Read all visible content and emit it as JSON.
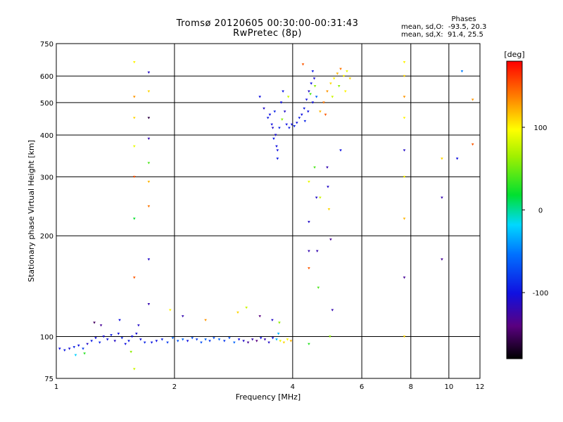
{
  "chart_data": {
    "type": "scatter",
    "title": "Tromsø 20120605 00:30:00-00:31:43",
    "subtitle": "RwPretec (8p)",
    "xlabel": "Frequency [MHz]",
    "ylabel": "Stationary phase Virtual Height [km]",
    "xscale": "log",
    "yscale": "log",
    "xlim": [
      1,
      12
    ],
    "ylim": [
      75,
      750
    ],
    "xticks": [
      1,
      2,
      4,
      6,
      8,
      10,
      12
    ],
    "yticks": [
      75,
      100,
      200,
      300,
      400,
      500,
      600,
      750
    ],
    "grid": true,
    "phase_stats": {
      "title": "Phases",
      "line_o": "mean, sd,O:  -93.5, 20.3",
      "line_x": "mean, sd,X:  91.4, 25.5"
    },
    "colorbar": {
      "label": "[deg]",
      "range": [
        -180,
        180
      ],
      "ticks": [
        100,
        0,
        -100
      ],
      "colormap": "rainbow"
    },
    "points": [
      {
        "x": 1.02,
        "y": 92,
        "c": -100
      },
      {
        "x": 1.05,
        "y": 91,
        "c": -95
      },
      {
        "x": 1.08,
        "y": 92,
        "c": -105
      },
      {
        "x": 1.11,
        "y": 93,
        "c": -90
      },
      {
        "x": 1.14,
        "y": 94,
        "c": -100
      },
      {
        "x": 1.17,
        "y": 92,
        "c": -80
      },
      {
        "x": 1.2,
        "y": 95,
        "c": -110
      },
      {
        "x": 1.23,
        "y": 97,
        "c": -95
      },
      {
        "x": 1.26,
        "y": 99,
        "c": -100
      },
      {
        "x": 1.29,
        "y": 96,
        "c": -90
      },
      {
        "x": 1.32,
        "y": 100,
        "c": -105
      },
      {
        "x": 1.35,
        "y": 98,
        "c": -100
      },
      {
        "x": 1.38,
        "y": 101,
        "c": -95
      },
      {
        "x": 1.41,
        "y": 97,
        "c": -110
      },
      {
        "x": 1.44,
        "y": 102,
        "c": -100
      },
      {
        "x": 1.47,
        "y": 99,
        "c": -90
      },
      {
        "x": 1.5,
        "y": 95,
        "c": -100
      },
      {
        "x": 1.53,
        "y": 97,
        "c": -95
      },
      {
        "x": 1.56,
        "y": 100,
        "c": -100
      },
      {
        "x": 1.6,
        "y": 102,
        "c": -105
      },
      {
        "x": 1.64,
        "y": 98,
        "c": -100
      },
      {
        "x": 1.68,
        "y": 96,
        "c": -90
      },
      {
        "x": 1.12,
        "y": 88,
        "c": -20
      },
      {
        "x": 1.18,
        "y": 89,
        "c": 30
      },
      {
        "x": 1.25,
        "y": 110,
        "c": -150
      },
      {
        "x": 1.3,
        "y": 108,
        "c": -130
      },
      {
        "x": 1.45,
        "y": 112,
        "c": -100
      },
      {
        "x": 1.55,
        "y": 90,
        "c": 60
      },
      {
        "x": 1.62,
        "y": 108,
        "c": -110
      },
      {
        "x": 1.58,
        "y": 660,
        "c": 100
      },
      {
        "x": 1.58,
        "y": 520,
        "c": 130
      },
      {
        "x": 1.58,
        "y": 450,
        "c": 110
      },
      {
        "x": 1.58,
        "y": 370,
        "c": 90
      },
      {
        "x": 1.58,
        "y": 300,
        "c": 150
      },
      {
        "x": 1.58,
        "y": 225,
        "c": 20
      },
      {
        "x": 1.58,
        "y": 150,
        "c": 150
      },
      {
        "x": 1.58,
        "y": 80,
        "c": 80
      },
      {
        "x": 1.72,
        "y": 615,
        "c": -110
      },
      {
        "x": 1.72,
        "y": 540,
        "c": 110
      },
      {
        "x": 1.72,
        "y": 450,
        "c": -160
      },
      {
        "x": 1.72,
        "y": 390,
        "c": -120
      },
      {
        "x": 1.72,
        "y": 330,
        "c": 40
      },
      {
        "x": 1.72,
        "y": 290,
        "c": 120
      },
      {
        "x": 1.72,
        "y": 245,
        "c": 140
      },
      {
        "x": 1.72,
        "y": 170,
        "c": -110
      },
      {
        "x": 1.72,
        "y": 125,
        "c": -120
      },
      {
        "x": 1.75,
        "y": 96,
        "c": -95
      },
      {
        "x": 1.8,
        "y": 97,
        "c": -100
      },
      {
        "x": 1.86,
        "y": 98,
        "c": -90
      },
      {
        "x": 1.92,
        "y": 96,
        "c": -80
      },
      {
        "x": 1.98,
        "y": 99,
        "c": -60
      },
      {
        "x": 2.04,
        "y": 97,
        "c": -70
      },
      {
        "x": 2.1,
        "y": 98,
        "c": -60
      },
      {
        "x": 2.16,
        "y": 97,
        "c": -100
      },
      {
        "x": 2.22,
        "y": 99,
        "c": -70
      },
      {
        "x": 2.28,
        "y": 98,
        "c": -80
      },
      {
        "x": 2.34,
        "y": 96,
        "c": -70
      },
      {
        "x": 2.4,
        "y": 98,
        "c": -60
      },
      {
        "x": 2.46,
        "y": 97,
        "c": -80
      },
      {
        "x": 2.52,
        "y": 99,
        "c": -70
      },
      {
        "x": 2.6,
        "y": 98,
        "c": -60
      },
      {
        "x": 2.68,
        "y": 97,
        "c": -80
      },
      {
        "x": 2.76,
        "y": 99,
        "c": -70
      },
      {
        "x": 2.84,
        "y": 96,
        "c": -60
      },
      {
        "x": 2.92,
        "y": 98,
        "c": -100
      },
      {
        "x": 3.0,
        "y": 97,
        "c": -110
      },
      {
        "x": 3.08,
        "y": 96,
        "c": -130
      },
      {
        "x": 3.16,
        "y": 98,
        "c": -120
      },
      {
        "x": 3.24,
        "y": 97,
        "c": -140
      },
      {
        "x": 3.32,
        "y": 99,
        "c": -100
      },
      {
        "x": 3.4,
        "y": 98,
        "c": -120
      },
      {
        "x": 3.48,
        "y": 96,
        "c": -110
      },
      {
        "x": 3.56,
        "y": 99,
        "c": -100
      },
      {
        "x": 3.64,
        "y": 98,
        "c": -30
      },
      {
        "x": 3.72,
        "y": 97,
        "c": 90
      },
      {
        "x": 3.8,
        "y": 96,
        "c": 110
      },
      {
        "x": 3.88,
        "y": 98,
        "c": 100
      },
      {
        "x": 3.96,
        "y": 97,
        "c": 120
      },
      {
        "x": 3.68,
        "y": 102,
        "c": -30
      },
      {
        "x": 1.95,
        "y": 120,
        "c": 100
      },
      {
        "x": 2.1,
        "y": 115,
        "c": -120
      },
      {
        "x": 2.4,
        "y": 112,
        "c": 130
      },
      {
        "x": 2.9,
        "y": 118,
        "c": 110
      },
      {
        "x": 3.05,
        "y": 122,
        "c": 80
      },
      {
        "x": 3.3,
        "y": 115,
        "c": -140
      },
      {
        "x": 3.55,
        "y": 112,
        "c": -110
      },
      {
        "x": 3.7,
        "y": 110,
        "c": 60
      },
      {
        "x": 3.3,
        "y": 520,
        "c": -100
      },
      {
        "x": 3.38,
        "y": 480,
        "c": -110
      },
      {
        "x": 3.46,
        "y": 450,
        "c": -95
      },
      {
        "x": 3.54,
        "y": 430,
        "c": -100
      },
      {
        "x": 3.6,
        "y": 470,
        "c": -90
      },
      {
        "x": 3.62,
        "y": 400,
        "c": -105
      },
      {
        "x": 3.64,
        "y": 370,
        "c": -100
      },
      {
        "x": 3.66,
        "y": 340,
        "c": -95
      },
      {
        "x": 3.7,
        "y": 420,
        "c": -90
      },
      {
        "x": 3.74,
        "y": 500,
        "c": -100
      },
      {
        "x": 3.78,
        "y": 540,
        "c": -95
      },
      {
        "x": 3.82,
        "y": 470,
        "c": -110
      },
      {
        "x": 3.86,
        "y": 430,
        "c": -100
      },
      {
        "x": 3.92,
        "y": 420,
        "c": -95
      },
      {
        "x": 3.98,
        "y": 430,
        "c": -100
      },
      {
        "x": 4.04,
        "y": 425,
        "c": -90
      },
      {
        "x": 4.1,
        "y": 435,
        "c": -100
      },
      {
        "x": 4.16,
        "y": 450,
        "c": -95
      },
      {
        "x": 3.5,
        "y": 460,
        "c": -100
      },
      {
        "x": 3.56,
        "y": 420,
        "c": -110
      },
      {
        "x": 3.58,
        "y": 390,
        "c": -95
      },
      {
        "x": 3.66,
        "y": 360,
        "c": -100
      },
      {
        "x": 3.76,
        "y": 445,
        "c": 60
      },
      {
        "x": 3.9,
        "y": 520,
        "c": 80
      },
      {
        "x": 4.22,
        "y": 460,
        "c": -100
      },
      {
        "x": 4.28,
        "y": 480,
        "c": -95
      },
      {
        "x": 4.34,
        "y": 510,
        "c": -100
      },
      {
        "x": 4.4,
        "y": 540,
        "c": -110
      },
      {
        "x": 4.46,
        "y": 570,
        "c": -100
      },
      {
        "x": 4.5,
        "y": 620,
        "c": -95
      },
      {
        "x": 4.54,
        "y": 590,
        "c": -105
      },
      {
        "x": 4.3,
        "y": 440,
        "c": -90
      },
      {
        "x": 4.38,
        "y": 470,
        "c": -100
      },
      {
        "x": 4.5,
        "y": 500,
        "c": -100
      },
      {
        "x": 4.44,
        "y": 530,
        "c": 40
      },
      {
        "x": 4.56,
        "y": 560,
        "c": 60
      },
      {
        "x": 4.25,
        "y": 650,
        "c": 150
      },
      {
        "x": 4.6,
        "y": 520,
        "c": -60
      },
      {
        "x": 4.7,
        "y": 470,
        "c": 120
      },
      {
        "x": 4.8,
        "y": 500,
        "c": 140
      },
      {
        "x": 4.9,
        "y": 540,
        "c": 130
      },
      {
        "x": 5.0,
        "y": 570,
        "c": 110
      },
      {
        "x": 5.1,
        "y": 590,
        "c": 100
      },
      {
        "x": 5.2,
        "y": 610,
        "c": 120
      },
      {
        "x": 5.3,
        "y": 630,
        "c": 140
      },
      {
        "x": 5.4,
        "y": 600,
        "c": 100
      },
      {
        "x": 5.5,
        "y": 620,
        "c": 90
      },
      {
        "x": 5.6,
        "y": 590,
        "c": 110
      },
      {
        "x": 4.85,
        "y": 460,
        "c": 150
      },
      {
        "x": 5.05,
        "y": 520,
        "c": 80
      },
      {
        "x": 5.25,
        "y": 560,
        "c": 60
      },
      {
        "x": 5.45,
        "y": 540,
        "c": 100
      },
      {
        "x": 4.4,
        "y": 290,
        "c": 90
      },
      {
        "x": 4.4,
        "y": 220,
        "c": -110
      },
      {
        "x": 4.4,
        "y": 180,
        "c": -120
      },
      {
        "x": 4.4,
        "y": 160,
        "c": 150
      },
      {
        "x": 4.4,
        "y": 95,
        "c": 30
      },
      {
        "x": 4.55,
        "y": 320,
        "c": 40
      },
      {
        "x": 4.6,
        "y": 260,
        "c": -110
      },
      {
        "x": 4.62,
        "y": 180,
        "c": -120
      },
      {
        "x": 4.65,
        "y": 140,
        "c": 40
      },
      {
        "x": 4.7,
        "y": 260,
        "c": 80
      },
      {
        "x": 4.9,
        "y": 320,
        "c": -120
      },
      {
        "x": 4.92,
        "y": 280,
        "c": -110
      },
      {
        "x": 4.95,
        "y": 240,
        "c": 110
      },
      {
        "x": 5.0,
        "y": 195,
        "c": -130
      },
      {
        "x": 5.05,
        "y": 120,
        "c": -120
      },
      {
        "x": 4.98,
        "y": 100,
        "c": 60
      },
      {
        "x": 5.3,
        "y": 360,
        "c": -100
      },
      {
        "x": 7.7,
        "y": 660,
        "c": 100
      },
      {
        "x": 7.7,
        "y": 600,
        "c": 110
      },
      {
        "x": 7.7,
        "y": 520,
        "c": 130
      },
      {
        "x": 7.7,
        "y": 450,
        "c": 100
      },
      {
        "x": 7.7,
        "y": 360,
        "c": -110
      },
      {
        "x": 7.7,
        "y": 300,
        "c": 100
      },
      {
        "x": 7.7,
        "y": 225,
        "c": 120
      },
      {
        "x": 7.7,
        "y": 150,
        "c": -130
      },
      {
        "x": 7.7,
        "y": 100,
        "c": 110
      },
      {
        "x": 9.6,
        "y": 340,
        "c": 110
      },
      {
        "x": 9.6,
        "y": 260,
        "c": -120
      },
      {
        "x": 9.6,
        "y": 170,
        "c": -130
      },
      {
        "x": 10.5,
        "y": 340,
        "c": -100
      },
      {
        "x": 10.8,
        "y": 620,
        "c": -50
      },
      {
        "x": 11.5,
        "y": 510,
        "c": 130
      },
      {
        "x": 11.5,
        "y": 375,
        "c": 150
      }
    ]
  }
}
